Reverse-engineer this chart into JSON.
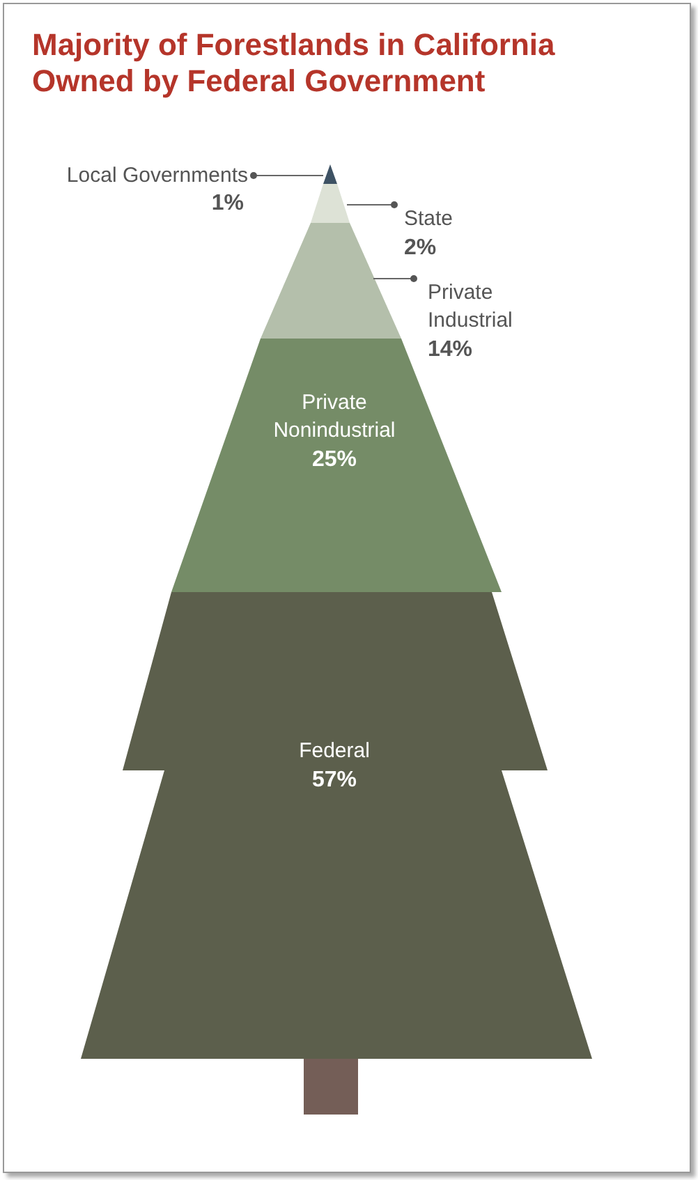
{
  "chart_data": {
    "type": "other",
    "title": "Majority of Forestlands in California Owned by Federal Government",
    "categories": [
      "Local Governments",
      "State",
      "Private Industrial",
      "Private Nonindustrial",
      "Federal"
    ],
    "values": [
      1,
      2,
      14,
      25,
      57
    ],
    "value_labels": [
      "1%",
      "2%",
      "14%",
      "25%",
      "57%"
    ],
    "colors": [
      "#3e5264",
      "#dde2d6",
      "#b4bfab",
      "#758c67",
      "#5c5f4c"
    ]
  }
}
